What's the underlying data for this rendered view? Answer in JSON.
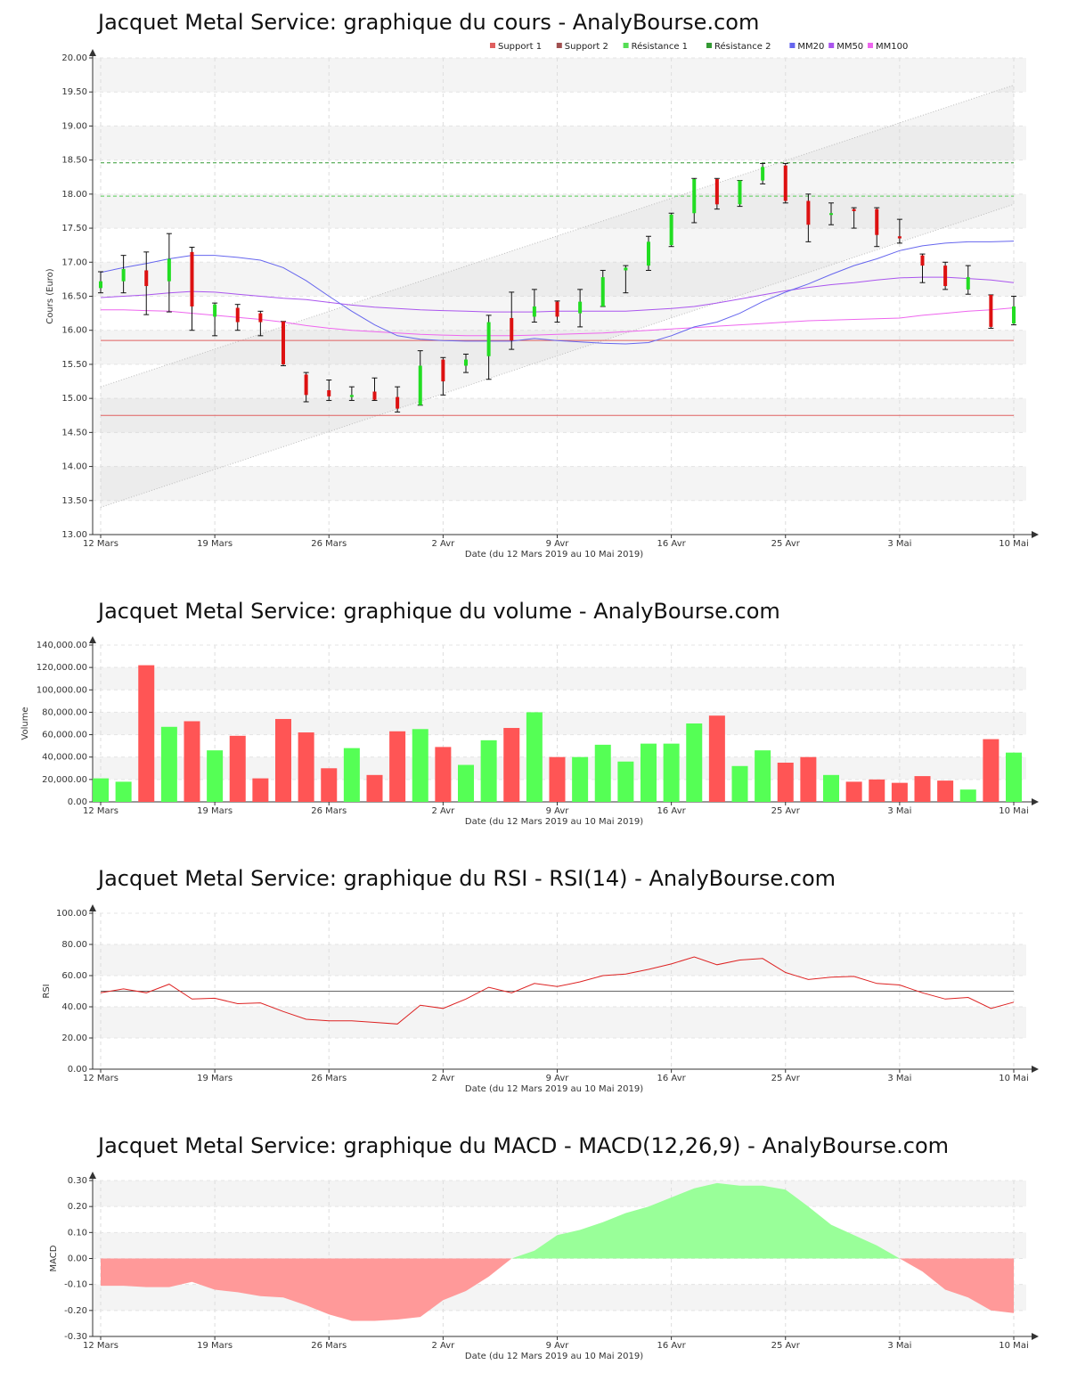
{
  "shared": {
    "x_ticks": [
      "12 Mars",
      "19 Mars",
      "26 Mars",
      "2 Avr",
      "9 Avr",
      "16 Avr",
      "25 Avr",
      "3 Mai",
      "10 Mai"
    ],
    "x_tick_index": [
      0,
      5,
      10,
      15,
      20,
      25,
      30,
      35,
      40
    ],
    "xlabel": "Date (du 12 Mars 2019 au 10 Mai 2019)",
    "up_color": "#55ff55",
    "down_color": "#ff5555"
  },
  "chart_data": [
    {
      "id": "price",
      "type": "candlestick",
      "title": "Jacquet Metal Service: graphique du cours - AnalyBourse.com",
      "ylabel": "Cours (Euro)",
      "ylim": [
        13.0,
        20.0
      ],
      "yticks": [
        "13.00",
        "13.50",
        "14.00",
        "14.50",
        "15.00",
        "15.50",
        "16.00",
        "16.50",
        "17.00",
        "17.50",
        "18.00",
        "18.50",
        "19.00",
        "19.50",
        "20.00"
      ],
      "legend": [
        {
          "name": "Support 1",
          "color": "#e06060"
        },
        {
          "name": "Support 2",
          "color": "#a05050"
        },
        {
          "name": "Résistance 1",
          "color": "#55dd55"
        },
        {
          "name": "Résistance 2",
          "color": "#339933"
        },
        {
          "name": "MM20",
          "color": "#6666ee"
        },
        {
          "name": "MM50",
          "color": "#aa55ee"
        },
        {
          "name": "MM100",
          "color": "#ee66ee"
        }
      ],
      "legend_position": "top-right",
      "candles": [
        {
          "o": 16.62,
          "h": 16.86,
          "l": 16.55,
          "c": 16.72
        },
        {
          "o": 16.72,
          "h": 17.1,
          "l": 16.55,
          "c": 16.9
        },
        {
          "o": 16.88,
          "h": 17.15,
          "l": 16.23,
          "c": 16.65
        },
        {
          "o": 16.72,
          "h": 17.42,
          "l": 16.27,
          "c": 17.05
        },
        {
          "o": 17.15,
          "h": 17.22,
          "l": 16.0,
          "c": 16.35
        },
        {
          "o": 16.2,
          "h": 16.4,
          "l": 15.92,
          "c": 16.38
        },
        {
          "o": 16.33,
          "h": 16.38,
          "l": 16.0,
          "c": 16.12
        },
        {
          "o": 16.25,
          "h": 16.28,
          "l": 15.92,
          "c": 16.12
        },
        {
          "o": 16.13,
          "h": 16.13,
          "l": 15.48,
          "c": 15.5
        },
        {
          "o": 15.35,
          "h": 15.38,
          "l": 14.95,
          "c": 15.05
        },
        {
          "o": 15.12,
          "h": 15.27,
          "l": 14.97,
          "c": 15.03
        },
        {
          "o": 15.02,
          "h": 15.17,
          "l": 14.97,
          "c": 15.05
        },
        {
          "o": 15.1,
          "h": 15.3,
          "l": 14.97,
          "c": 14.98
        },
        {
          "o": 15.02,
          "h": 15.17,
          "l": 14.8,
          "c": 14.85
        },
        {
          "o": 14.9,
          "h": 15.7,
          "l": 14.9,
          "c": 15.48
        },
        {
          "o": 15.57,
          "h": 15.6,
          "l": 15.05,
          "c": 15.25
        },
        {
          "o": 15.48,
          "h": 15.65,
          "l": 15.38,
          "c": 15.57
        },
        {
          "o": 15.62,
          "h": 16.22,
          "l": 15.28,
          "c": 16.12
        },
        {
          "o": 16.18,
          "h": 16.56,
          "l": 15.72,
          "c": 15.85
        },
        {
          "o": 16.2,
          "h": 16.6,
          "l": 16.12,
          "c": 16.35
        },
        {
          "o": 16.42,
          "h": 16.43,
          "l": 16.12,
          "c": 16.2
        },
        {
          "o": 16.25,
          "h": 16.6,
          "l": 16.05,
          "c": 16.42
        },
        {
          "o": 16.35,
          "h": 16.88,
          "l": 16.35,
          "c": 16.78
        },
        {
          "o": 16.88,
          "h": 16.95,
          "l": 16.55,
          "c": 16.92
        },
        {
          "o": 16.95,
          "h": 17.38,
          "l": 16.88,
          "c": 17.3
        },
        {
          "o": 17.25,
          "h": 17.72,
          "l": 17.23,
          "c": 17.7
        },
        {
          "o": 17.72,
          "h": 18.23,
          "l": 17.58,
          "c": 18.22
        },
        {
          "o": 18.22,
          "h": 18.23,
          "l": 17.78,
          "c": 17.85
        },
        {
          "o": 17.85,
          "h": 18.2,
          "l": 17.82,
          "c": 18.2
        },
        {
          "o": 18.2,
          "h": 18.45,
          "l": 18.15,
          "c": 18.4
        },
        {
          "o": 18.42,
          "h": 18.45,
          "l": 17.87,
          "c": 17.9
        },
        {
          "o": 17.9,
          "h": 18.0,
          "l": 17.3,
          "c": 17.55
        },
        {
          "o": 17.7,
          "h": 17.87,
          "l": 17.55,
          "c": 17.72
        },
        {
          "o": 17.78,
          "h": 17.8,
          "l": 17.5,
          "c": 17.75
        },
        {
          "o": 17.78,
          "h": 17.8,
          "l": 17.23,
          "c": 17.4
        },
        {
          "o": 17.38,
          "h": 17.63,
          "l": 17.28,
          "c": 17.35
        },
        {
          "o": 17.1,
          "h": 17.12,
          "l": 16.7,
          "c": 16.95
        },
        {
          "o": 16.95,
          "h": 17.0,
          "l": 16.6,
          "c": 16.65
        },
        {
          "o": 16.6,
          "h": 16.95,
          "l": 16.53,
          "c": 16.78
        },
        {
          "o": 16.52,
          "h": 16.52,
          "l": 16.03,
          "c": 16.05
        },
        {
          "o": 16.1,
          "h": 16.5,
          "l": 16.08,
          "c": 16.35
        }
      ],
      "support1": 15.85,
      "support2": 14.75,
      "resistance1": 17.97,
      "resistance2": 18.46,
      "channel_upper": [
        15.17,
        19.6
      ],
      "channel_lower": [
        13.4,
        17.85
      ],
      "mm20": [
        16.85,
        16.92,
        16.98,
        17.05,
        17.1,
        17.1,
        17.07,
        17.03,
        16.92,
        16.73,
        16.5,
        16.28,
        16.08,
        15.92,
        15.87,
        15.85,
        15.84,
        15.84,
        15.84,
        15.88,
        15.85,
        15.83,
        15.81,
        15.8,
        15.82,
        15.92,
        16.05,
        16.12,
        16.25,
        16.42,
        16.56,
        16.68,
        16.82,
        16.95,
        17.05,
        17.17,
        17.24,
        17.28,
        17.3,
        17.3,
        17.31
      ],
      "mm50": [
        16.48,
        16.5,
        16.52,
        16.55,
        16.57,
        16.56,
        16.53,
        16.5,
        16.47,
        16.45,
        16.41,
        16.37,
        16.34,
        16.32,
        16.3,
        16.29,
        16.28,
        16.27,
        16.27,
        16.27,
        16.28,
        16.28,
        16.28,
        16.28,
        16.3,
        16.32,
        16.35,
        16.4,
        16.46,
        16.52,
        16.58,
        16.63,
        16.67,
        16.7,
        16.74,
        16.77,
        16.78,
        16.78,
        16.76,
        16.74,
        16.7
      ],
      "mm100": [
        16.3,
        16.3,
        16.29,
        16.28,
        16.25,
        16.22,
        16.19,
        16.16,
        16.12,
        16.07,
        16.03,
        16.0,
        15.98,
        15.96,
        15.94,
        15.93,
        15.92,
        15.92,
        15.92,
        15.93,
        15.94,
        15.95,
        15.96,
        15.98,
        16.0,
        16.02,
        16.04,
        16.06,
        16.08,
        16.1,
        16.12,
        16.14,
        16.15,
        16.16,
        16.17,
        16.18,
        16.22,
        16.25,
        16.28,
        16.3,
        16.33
      ]
    },
    {
      "id": "volume",
      "type": "bar",
      "title": "Jacquet Metal Service: graphique du volume - AnalyBourse.com",
      "ylabel": "Volume",
      "ylim": [
        0,
        140000
      ],
      "yticks": [
        "0.00",
        "20,000.00",
        "40,000.00",
        "60,000.00",
        "80,000.00",
        "100,000.00",
        "120,000.00",
        "140,000.00"
      ],
      "values": [
        21000,
        18000,
        122000,
        67000,
        72000,
        46000,
        59000,
        21000,
        74000,
        62000,
        30000,
        48000,
        24000,
        63000,
        65000,
        49000,
        33000,
        55000,
        66000,
        80000,
        40000,
        40000,
        51000,
        36000,
        52000,
        52000,
        70000,
        77000,
        32000,
        46000,
        35000,
        40000,
        24000,
        18000,
        20000,
        17000,
        23000,
        19000,
        11000,
        56000,
        44000
      ],
      "colors": [
        "up",
        "up",
        "down",
        "up",
        "down",
        "up",
        "down",
        "down",
        "down",
        "down",
        "down",
        "up",
        "down",
        "down",
        "up",
        "down",
        "up",
        "up",
        "down",
        "up",
        "down",
        "up",
        "up",
        "up",
        "up",
        "up",
        "up",
        "down",
        "up",
        "up",
        "down",
        "down",
        "up",
        "down",
        "down",
        "down",
        "down",
        "down",
        "up",
        "down",
        "up"
      ]
    },
    {
      "id": "rsi",
      "type": "line",
      "title": "Jacquet Metal Service: graphique du RSI - RSI(14) - AnalyBourse.com",
      "ylabel": "RSI",
      "ylim": [
        0,
        100
      ],
      "yticks": [
        "0.00",
        "20.00",
        "40.00",
        "60.00",
        "80.00",
        "100.00"
      ],
      "reference": 50,
      "values": [
        49,
        51.5,
        49,
        54.5,
        45,
        45.5,
        42,
        42.5,
        37,
        32,
        31,
        31,
        30,
        29,
        41,
        39,
        45,
        52.5,
        49,
        55,
        53,
        56,
        60,
        61,
        64,
        67.5,
        72,
        67,
        70,
        71,
        62,
        57.5,
        59,
        59.5,
        55,
        54,
        49,
        45,
        46,
        39,
        43
      ]
    },
    {
      "id": "macd",
      "type": "area",
      "title": "Jacquet Metal Service: graphique du MACD - MACD(12,26,9) - AnalyBourse.com",
      "ylabel": "MACD",
      "ylim": [
        -0.3,
        0.3
      ],
      "yticks": [
        "-0.30",
        "-0.20",
        "-0.10",
        "0.00",
        "0.10",
        "0.20",
        "0.30"
      ],
      "values": [
        -0.105,
        -0.105,
        -0.11,
        -0.11,
        -0.09,
        -0.12,
        -0.13,
        -0.145,
        -0.15,
        -0.18,
        -0.215,
        -0.24,
        -0.24,
        -0.235,
        -0.225,
        -0.16,
        -0.125,
        -0.07,
        0.0,
        0.03,
        0.09,
        0.11,
        0.14,
        0.175,
        0.2,
        0.235,
        0.27,
        0.29,
        0.28,
        0.28,
        0.265,
        0.2,
        0.13,
        0.09,
        0.05,
        0.0,
        -0.05,
        -0.12,
        -0.15,
        -0.2,
        -0.21
      ]
    }
  ]
}
